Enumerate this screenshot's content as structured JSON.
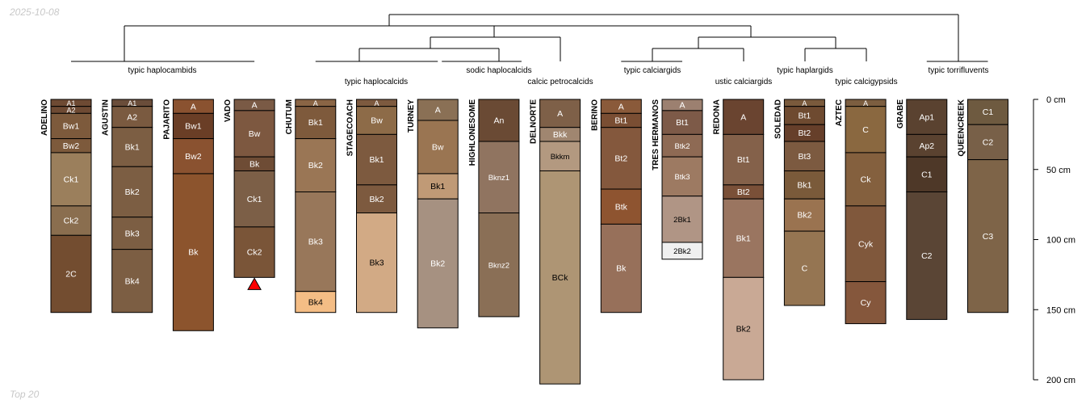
{
  "meta": {
    "date": "2025-10-08",
    "footer": "Top 20"
  },
  "colors": {
    "line": "#000000",
    "marker": "#ff0000",
    "light_text": "#ffffff",
    "dark_text": "#000000"
  },
  "depth_axis": {
    "unit": "cm",
    "min": 0,
    "max": 200,
    "ticks": [
      {
        "value": 0,
        "label": "0 cm"
      },
      {
        "value": 50,
        "label": "50 cm"
      },
      {
        "value": 100,
        "label": "100 cm"
      },
      {
        "value": 150,
        "label": "150 cm"
      },
      {
        "value": 200,
        "label": "200 cm"
      }
    ]
  },
  "groups": [
    {
      "id": "g1",
      "label": "typic haplocambids",
      "row": 1
    },
    {
      "id": "g2",
      "label": "typic haplocalcids",
      "row": 2
    },
    {
      "id": "g3",
      "label": "sodic haplocalcids",
      "row": 1
    },
    {
      "id": "g4",
      "label": "calcic petrocalcids",
      "row": 2
    },
    {
      "id": "g5",
      "label": "typic calciargids",
      "row": 1
    },
    {
      "id": "g6",
      "label": "ustic calciargids",
      "row": 2
    },
    {
      "id": "g7",
      "label": "typic haplargids",
      "row": 1
    },
    {
      "id": "g8",
      "label": "typic calcigypsids",
      "row": 2
    },
    {
      "id": "g9",
      "label": "typic torrifluvents",
      "row": 1
    }
  ],
  "profiles": [
    {
      "name": "ADELINO",
      "horizons": [
        {
          "name": "A1",
          "top": 0,
          "bottom": 5,
          "color": "#6e4a33",
          "text": "light"
        },
        {
          "name": "A2",
          "top": 5,
          "bottom": 10,
          "color": "#6e4a33",
          "text": "light"
        },
        {
          "name": "Bw1",
          "top": 10,
          "bottom": 28,
          "color": "#7d5a3c",
          "text": "light"
        },
        {
          "name": "Bw2",
          "top": 28,
          "bottom": 38,
          "color": "#7d5a3c",
          "text": "light"
        },
        {
          "name": "Ck1",
          "top": 38,
          "bottom": 76,
          "color": "#9b7f5c",
          "text": "light"
        },
        {
          "name": "Ck2",
          "top": 76,
          "bottom": 97,
          "color": "#8a6e4f",
          "text": "light"
        },
        {
          "name": "2C",
          "top": 97,
          "bottom": 152,
          "color": "#734d30",
          "text": "light"
        }
      ]
    },
    {
      "name": "AGUSTIN",
      "horizons": [
        {
          "name": "A1",
          "top": 0,
          "bottom": 5,
          "color": "#6a4d3a",
          "text": "light"
        },
        {
          "name": "A2",
          "top": 5,
          "bottom": 20,
          "color": "#7a5a40",
          "text": "light"
        },
        {
          "name": "Bk1",
          "top": 20,
          "bottom": 48,
          "color": "#7c5e43",
          "text": "light"
        },
        {
          "name": "Bk2",
          "top": 48,
          "bottom": 84,
          "color": "#7c5e43",
          "text": "light"
        },
        {
          "name": "Bk3",
          "top": 84,
          "bottom": 107,
          "color": "#7c5e43",
          "text": "light"
        },
        {
          "name": "Bk4",
          "top": 107,
          "bottom": 152,
          "color": "#7c5e43",
          "text": "light"
        }
      ]
    },
    {
      "name": "PAJARITO",
      "horizons": [
        {
          "name": "A",
          "top": 0,
          "bottom": 10,
          "color": "#8a5230",
          "text": "light"
        },
        {
          "name": "Bw1",
          "top": 10,
          "bottom": 28,
          "color": "#6a3e26",
          "text": "light"
        },
        {
          "name": "Bw2",
          "top": 28,
          "bottom": 53,
          "color": "#8a5230",
          "text": "light"
        },
        {
          "name": "Bk",
          "top": 53,
          "bottom": 165,
          "color": "#8c542d",
          "text": "light"
        }
      ]
    },
    {
      "name": "VADO",
      "marker": true,
      "horizons": [
        {
          "name": "A",
          "top": 0,
          "bottom": 8,
          "color": "#7a5a45",
          "text": "light"
        },
        {
          "name": "Bw",
          "top": 8,
          "bottom": 41,
          "color": "#7d5840",
          "text": "light"
        },
        {
          "name": "Bk",
          "top": 41,
          "bottom": 51,
          "color": "#6e4c35",
          "text": "light"
        },
        {
          "name": "Ck1",
          "top": 51,
          "bottom": 91,
          "color": "#7c5f47",
          "text": "light"
        },
        {
          "name": "Ck2",
          "top": 91,
          "bottom": 127,
          "color": "#7a5538",
          "text": "light"
        }
      ]
    },
    {
      "name": "CHUTUM",
      "horizons": [
        {
          "name": "A",
          "top": 0,
          "bottom": 5,
          "color": "#8a6545",
          "text": "light"
        },
        {
          "name": "Bk1",
          "top": 5,
          "bottom": 28,
          "color": "#7e5a3c",
          "text": "light"
        },
        {
          "name": "Bk2",
          "top": 28,
          "bottom": 66,
          "color": "#9a7655",
          "text": "light"
        },
        {
          "name": "Bk3",
          "top": 66,
          "bottom": 137,
          "color": "#98775a",
          "text": "light"
        },
        {
          "name": "Bk4",
          "top": 137,
          "bottom": 152,
          "color": "#f4bd85",
          "text": "dark"
        }
      ]
    },
    {
      "name": "STAGECOACH",
      "horizons": [
        {
          "name": "A",
          "top": 0,
          "bottom": 5,
          "color": "#7d5a3f",
          "text": "light"
        },
        {
          "name": "Bw",
          "top": 5,
          "bottom": 25,
          "color": "#8d6b48",
          "text": "light"
        },
        {
          "name": "Bk1",
          "top": 25,
          "bottom": 61,
          "color": "#7d5a3f",
          "text": "light"
        },
        {
          "name": "Bk2",
          "top": 61,
          "bottom": 81,
          "color": "#7d5a3f",
          "text": "light"
        },
        {
          "name": "Bk3",
          "top": 81,
          "bottom": 152,
          "color": "#d2aa85",
          "text": "dark"
        }
      ]
    },
    {
      "name": "TURNEY",
      "horizons": [
        {
          "name": "A",
          "top": 0,
          "bottom": 15,
          "color": "#8a7055",
          "text": "light"
        },
        {
          "name": "Bw",
          "top": 15,
          "bottom": 53,
          "color": "#9a7552",
          "text": "light"
        },
        {
          "name": "Bk1",
          "top": 53,
          "bottom": 71,
          "color": "#c09a76",
          "text": "dark"
        },
        {
          "name": "Bk2",
          "top": 71,
          "bottom": 163,
          "color": "#a69181",
          "text": "light"
        }
      ]
    },
    {
      "name": "HIGHLONESOME",
      "horizons": [
        {
          "name": "An",
          "top": 0,
          "bottom": 30,
          "color": "#6a4a34",
          "text": "light"
        },
        {
          "name": "Bknz1",
          "top": 30,
          "bottom": 81,
          "color": "#907460",
          "text": "light"
        },
        {
          "name": "Bknz2",
          "top": 81,
          "bottom": 155,
          "color": "#8a6f56",
          "text": "light"
        }
      ]
    },
    {
      "name": "DELNORTE",
      "horizons": [
        {
          "name": "A",
          "top": 0,
          "bottom": 20,
          "color": "#7e6048",
          "text": "light"
        },
        {
          "name": "Bkk",
          "top": 20,
          "bottom": 30,
          "color": "#a08670",
          "text": "light"
        },
        {
          "name": "Bkkm",
          "top": 30,
          "bottom": 51,
          "color": "#b39980",
          "text": "dark"
        },
        {
          "name": "BCk",
          "top": 51,
          "bottom": 203,
          "color": "#ae9574",
          "text": "dark"
        }
      ]
    },
    {
      "name": "BERINO",
      "horizons": [
        {
          "name": "A",
          "top": 0,
          "bottom": 10,
          "color": "#8a5a3a",
          "text": "light"
        },
        {
          "name": "Bt1",
          "top": 10,
          "bottom": 20,
          "color": "#7a4e33",
          "text": "light"
        },
        {
          "name": "Bt2",
          "top": 20,
          "bottom": 64,
          "color": "#84583d",
          "text": "light"
        },
        {
          "name": "Btk",
          "top": 64,
          "bottom": 89,
          "color": "#8e5430",
          "text": "light"
        },
        {
          "name": "Bk",
          "top": 89,
          "bottom": 152,
          "color": "#97705a",
          "text": "light"
        }
      ]
    },
    {
      "name": "TRES HERMANOS",
      "horizons": [
        {
          "name": "A",
          "top": 0,
          "bottom": 8,
          "color": "#9c8070",
          "text": "light"
        },
        {
          "name": "Bt1",
          "top": 8,
          "bottom": 25,
          "color": "#7d5a48",
          "text": "light"
        },
        {
          "name": "Btk2",
          "top": 25,
          "bottom": 41,
          "color": "#8e6a54",
          "text": "light"
        },
        {
          "name": "Btk3",
          "top": 41,
          "bottom": 69,
          "color": "#9d7a62",
          "text": "light"
        },
        {
          "name": "2Bk1",
          "top": 69,
          "bottom": 102,
          "color": "#b09585",
          "text": "dark"
        },
        {
          "name": "2Bk2",
          "top": 102,
          "bottom": 114,
          "color": "#f0f0f0",
          "text": "dark"
        }
      ]
    },
    {
      "name": "REDONA",
      "horizons": [
        {
          "name": "A",
          "top": 0,
          "bottom": 25,
          "color": "#6a4430",
          "text": "light"
        },
        {
          "name": "Bt1",
          "top": 25,
          "bottom": 61,
          "color": "#84614a",
          "text": "light"
        },
        {
          "name": "Bt2",
          "top": 61,
          "bottom": 71,
          "color": "#7a5038",
          "text": "light"
        },
        {
          "name": "Bk1",
          "top": 71,
          "bottom": 127,
          "color": "#9a7560",
          "text": "light"
        },
        {
          "name": "Bk2",
          "top": 127,
          "bottom": 200,
          "color": "#c9a995",
          "text": "dark"
        }
      ]
    },
    {
      "name": "SOLEDAD",
      "horizons": [
        {
          "name": "A",
          "top": 0,
          "bottom": 5,
          "color": "#7a5a3c",
          "text": "light"
        },
        {
          "name": "Bt1",
          "top": 5,
          "bottom": 18,
          "color": "#6e4a30",
          "text": "light"
        },
        {
          "name": "Bt2",
          "top": 18,
          "bottom": 30,
          "color": "#663f2a",
          "text": "light"
        },
        {
          "name": "Bt3",
          "top": 30,
          "bottom": 51,
          "color": "#7c5a40",
          "text": "light"
        },
        {
          "name": "Bk1",
          "top": 51,
          "bottom": 71,
          "color": "#7a5a3a",
          "text": "light"
        },
        {
          "name": "Bk2",
          "top": 71,
          "bottom": 94,
          "color": "#9a7350",
          "text": "light"
        },
        {
          "name": "C",
          "top": 94,
          "bottom": 147,
          "color": "#957552",
          "text": "light"
        }
      ]
    },
    {
      "name": "AZTEC",
      "horizons": [
        {
          "name": "A",
          "top": 0,
          "bottom": 5,
          "color": "#7c5e40",
          "text": "light"
        },
        {
          "name": "C",
          "top": 5,
          "bottom": 38,
          "color": "#8a6840",
          "text": "light"
        },
        {
          "name": "Ck",
          "top": 38,
          "bottom": 76,
          "color": "#84603e",
          "text": "light"
        },
        {
          "name": "Cyk",
          "top": 76,
          "bottom": 130,
          "color": "#80583c",
          "text": "light"
        },
        {
          "name": "Cy",
          "top": 130,
          "bottom": 160,
          "color": "#85573c",
          "text": "light"
        }
      ]
    },
    {
      "name": "GRABE",
      "horizons": [
        {
          "name": "Ap1",
          "top": 0,
          "bottom": 25,
          "color": "#5a4230",
          "text": "light"
        },
        {
          "name": "Ap2",
          "top": 25,
          "bottom": 41,
          "color": "#5a4230",
          "text": "light"
        },
        {
          "name": "C1",
          "top": 41,
          "bottom": 66,
          "color": "#4e3828",
          "text": "light"
        },
        {
          "name": "C2",
          "top": 66,
          "bottom": 157,
          "color": "#5a4535",
          "text": "light"
        }
      ]
    },
    {
      "name": "QUEENCREEK",
      "horizons": [
        {
          "name": "C1",
          "top": 0,
          "bottom": 18,
          "color": "#6e5a40",
          "text": "light"
        },
        {
          "name": "C2",
          "top": 18,
          "bottom": 43,
          "color": "#786048",
          "text": "light"
        },
        {
          "name": "C3",
          "top": 43,
          "bottom": 152,
          "color": "#7e6448",
          "text": "light"
        }
      ]
    }
  ]
}
